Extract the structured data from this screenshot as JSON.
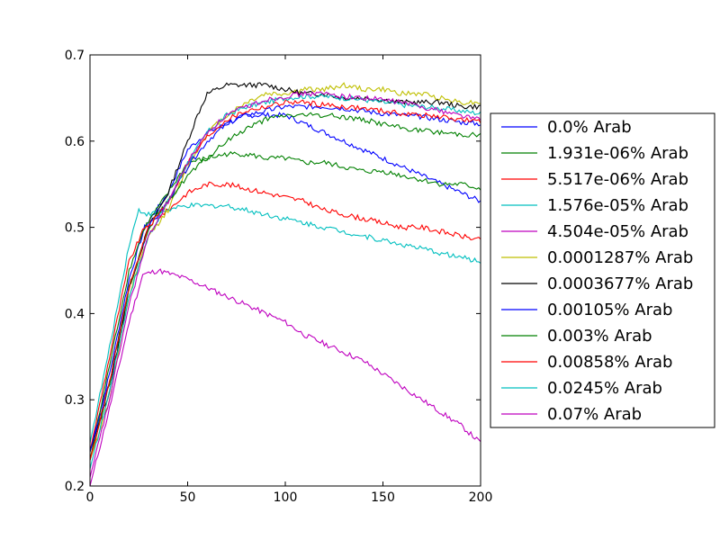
{
  "chart_data": {
    "type": "line",
    "title": "",
    "xlabel": "",
    "ylabel": "",
    "xlim": [
      0,
      200
    ],
    "ylim": [
      0.2,
      0.7
    ],
    "x_ticks": [
      0,
      50,
      100,
      150,
      200
    ],
    "x_tick_labels": [
      "0",
      "50",
      "100",
      "150",
      "200"
    ],
    "y_ticks": [
      0.2,
      0.3,
      0.4,
      0.5,
      0.6,
      0.7
    ],
    "y_tick_labels": [
      "0.2",
      "0.3",
      "0.4",
      "0.5",
      "0.6",
      "0.7"
    ],
    "grid": false,
    "legend_position": "right, outside plot area",
    "series": [
      {
        "name": "0.0% Arab",
        "color": "#0000ff",
        "points": [
          [
            0,
            0.24
          ],
          [
            10,
            0.33
          ],
          [
            20,
            0.44
          ],
          [
            28,
            0.5
          ],
          [
            40,
            0.54
          ],
          [
            50,
            0.59
          ],
          [
            60,
            0.61
          ],
          [
            70,
            0.62
          ],
          [
            80,
            0.63
          ],
          [
            90,
            0.63
          ],
          [
            100,
            0.63
          ],
          [
            110,
            0.62
          ],
          [
            120,
            0.61
          ],
          [
            130,
            0.6
          ],
          [
            140,
            0.59
          ],
          [
            150,
            0.58
          ],
          [
            160,
            0.57
          ],
          [
            170,
            0.56
          ],
          [
            180,
            0.55
          ],
          [
            190,
            0.54
          ],
          [
            200,
            0.53
          ]
        ]
      },
      {
        "name": "1.931e-06% Arab",
        "color": "#008000",
        "points": [
          [
            0,
            0.23
          ],
          [
            10,
            0.34
          ],
          [
            20,
            0.45
          ],
          [
            28,
            0.5
          ],
          [
            40,
            0.54
          ],
          [
            50,
            0.575
          ],
          [
            60,
            0.58
          ],
          [
            70,
            0.585
          ],
          [
            80,
            0.585
          ],
          [
            90,
            0.58
          ],
          [
            100,
            0.58
          ],
          [
            110,
            0.575
          ],
          [
            120,
            0.575
          ],
          [
            130,
            0.57
          ],
          [
            140,
            0.565
          ],
          [
            150,
            0.565
          ],
          [
            160,
            0.56
          ],
          [
            170,
            0.555
          ],
          [
            180,
            0.55
          ],
          [
            190,
            0.55
          ],
          [
            200,
            0.545
          ]
        ]
      },
      {
        "name": "5.517e-06% Arab",
        "color": "#ff0000",
        "points": [
          [
            0,
            0.24
          ],
          [
            10,
            0.35
          ],
          [
            20,
            0.46
          ],
          [
            28,
            0.5
          ],
          [
            40,
            0.52
          ],
          [
            50,
            0.54
          ],
          [
            60,
            0.55
          ],
          [
            70,
            0.55
          ],
          [
            80,
            0.545
          ],
          [
            90,
            0.54
          ],
          [
            100,
            0.535
          ],
          [
            110,
            0.53
          ],
          [
            120,
            0.52
          ],
          [
            130,
            0.515
          ],
          [
            140,
            0.51
          ],
          [
            150,
            0.505
          ],
          [
            160,
            0.5
          ],
          [
            170,
            0.5
          ],
          [
            180,
            0.495
          ],
          [
            190,
            0.49
          ],
          [
            200,
            0.485
          ]
        ]
      },
      {
        "name": "1.576e-05% Arab",
        "color": "#00bfbf",
        "points": [
          [
            0,
            0.25
          ],
          [
            10,
            0.36
          ],
          [
            20,
            0.48
          ],
          [
            25,
            0.52
          ],
          [
            30,
            0.515
          ],
          [
            40,
            0.52
          ],
          [
            50,
            0.525
          ],
          [
            60,
            0.525
          ],
          [
            70,
            0.525
          ],
          [
            80,
            0.52
          ],
          [
            90,
            0.515
          ],
          [
            100,
            0.51
          ],
          [
            110,
            0.505
          ],
          [
            120,
            0.5
          ],
          [
            130,
            0.495
          ],
          [
            140,
            0.49
          ],
          [
            150,
            0.485
          ],
          [
            160,
            0.48
          ],
          [
            170,
            0.475
          ],
          [
            180,
            0.47
          ],
          [
            190,
            0.465
          ],
          [
            200,
            0.46
          ]
        ]
      },
      {
        "name": "4.504e-05% Arab",
        "color": "#bf00bf",
        "points": [
          [
            0,
            0.2
          ],
          [
            10,
            0.29
          ],
          [
            20,
            0.39
          ],
          [
            27,
            0.445
          ],
          [
            35,
            0.45
          ],
          [
            50,
            0.44
          ],
          [
            60,
            0.43
          ],
          [
            70,
            0.42
          ],
          [
            80,
            0.41
          ],
          [
            90,
            0.4
          ],
          [
            100,
            0.39
          ],
          [
            110,
            0.375
          ],
          [
            120,
            0.365
          ],
          [
            130,
            0.355
          ],
          [
            140,
            0.345
          ],
          [
            150,
            0.33
          ],
          [
            160,
            0.315
          ],
          [
            170,
            0.3
          ],
          [
            180,
            0.285
          ],
          [
            190,
            0.27
          ],
          [
            200,
            0.25
          ]
        ]
      },
      {
        "name": "0.0001287% Arab",
        "color": "#bfbf00",
        "points": [
          [
            0,
            0.23
          ],
          [
            10,
            0.3
          ],
          [
            20,
            0.42
          ],
          [
            30,
            0.49
          ],
          [
            40,
            0.52
          ],
          [
            50,
            0.57
          ],
          [
            60,
            0.61
          ],
          [
            70,
            0.63
          ],
          [
            80,
            0.645
          ],
          [
            90,
            0.655
          ],
          [
            100,
            0.655
          ],
          [
            110,
            0.66
          ],
          [
            120,
            0.66
          ],
          [
            130,
            0.665
          ],
          [
            140,
            0.66
          ],
          [
            150,
            0.66
          ],
          [
            160,
            0.655
          ],
          [
            170,
            0.655
          ],
          [
            180,
            0.65
          ],
          [
            190,
            0.645
          ],
          [
            200,
            0.645
          ]
        ]
      },
      {
        "name": "0.0003677% Arab",
        "color": "#000000",
        "points": [
          [
            0,
            0.24
          ],
          [
            10,
            0.31
          ],
          [
            20,
            0.43
          ],
          [
            30,
            0.5
          ],
          [
            40,
            0.54
          ],
          [
            50,
            0.6
          ],
          [
            55,
            0.63
          ],
          [
            60,
            0.655
          ],
          [
            70,
            0.665
          ],
          [
            80,
            0.665
          ],
          [
            90,
            0.665
          ],
          [
            100,
            0.66
          ],
          [
            110,
            0.655
          ],
          [
            120,
            0.655
          ],
          [
            130,
            0.65
          ],
          [
            140,
            0.65
          ],
          [
            150,
            0.648
          ],
          [
            160,
            0.645
          ],
          [
            170,
            0.645
          ],
          [
            180,
            0.645
          ],
          [
            190,
            0.64
          ],
          [
            200,
            0.64
          ]
        ]
      },
      {
        "name": "0.00105% Arab",
        "color": "#0000ff",
        "points": [
          [
            0,
            0.24
          ],
          [
            10,
            0.32
          ],
          [
            20,
            0.43
          ],
          [
            30,
            0.5
          ],
          [
            40,
            0.53
          ],
          [
            50,
            0.57
          ],
          [
            60,
            0.6
          ],
          [
            70,
            0.62
          ],
          [
            80,
            0.63
          ],
          [
            90,
            0.635
          ],
          [
            100,
            0.64
          ],
          [
            110,
            0.64
          ],
          [
            120,
            0.64
          ],
          [
            130,
            0.638
          ],
          [
            140,
            0.635
          ],
          [
            150,
            0.632
          ],
          [
            160,
            0.63
          ],
          [
            170,
            0.628
          ],
          [
            180,
            0.625
          ],
          [
            190,
            0.622
          ],
          [
            200,
            0.62
          ]
        ]
      },
      {
        "name": "0.003% Arab",
        "color": "#008000",
        "points": [
          [
            0,
            0.23
          ],
          [
            10,
            0.32
          ],
          [
            20,
            0.43
          ],
          [
            30,
            0.5
          ],
          [
            40,
            0.53
          ],
          [
            50,
            0.56
          ],
          [
            60,
            0.58
          ],
          [
            70,
            0.6
          ],
          [
            80,
            0.615
          ],
          [
            90,
            0.625
          ],
          [
            100,
            0.63
          ],
          [
            110,
            0.63
          ],
          [
            120,
            0.63
          ],
          [
            130,
            0.628
          ],
          [
            140,
            0.625
          ],
          [
            150,
            0.62
          ],
          [
            160,
            0.615
          ],
          [
            170,
            0.612
          ],
          [
            180,
            0.61
          ],
          [
            190,
            0.608
          ],
          [
            200,
            0.607
          ]
        ]
      },
      {
        "name": "0.00858% Arab",
        "color": "#ff0000",
        "points": [
          [
            0,
            0.23
          ],
          [
            10,
            0.32
          ],
          [
            20,
            0.43
          ],
          [
            30,
            0.5
          ],
          [
            40,
            0.53
          ],
          [
            50,
            0.575
          ],
          [
            60,
            0.605
          ],
          [
            70,
            0.625
          ],
          [
            80,
            0.635
          ],
          [
            90,
            0.64
          ],
          [
            100,
            0.645
          ],
          [
            110,
            0.645
          ],
          [
            120,
            0.642
          ],
          [
            130,
            0.64
          ],
          [
            140,
            0.638
          ],
          [
            150,
            0.635
          ],
          [
            160,
            0.632
          ],
          [
            170,
            0.63
          ],
          [
            180,
            0.628
          ],
          [
            190,
            0.625
          ],
          [
            200,
            0.622
          ]
        ]
      },
      {
        "name": "0.0245% Arab",
        "color": "#00bfbf",
        "points": [
          [
            0,
            0.22
          ],
          [
            10,
            0.31
          ],
          [
            20,
            0.42
          ],
          [
            30,
            0.49
          ],
          [
            40,
            0.53
          ],
          [
            50,
            0.575
          ],
          [
            60,
            0.61
          ],
          [
            70,
            0.63
          ],
          [
            80,
            0.64
          ],
          [
            90,
            0.645
          ],
          [
            100,
            0.65
          ],
          [
            110,
            0.652
          ],
          [
            120,
            0.652
          ],
          [
            130,
            0.65
          ],
          [
            140,
            0.648
          ],
          [
            150,
            0.645
          ],
          [
            160,
            0.642
          ],
          [
            170,
            0.64
          ],
          [
            180,
            0.638
          ],
          [
            190,
            0.635
          ],
          [
            200,
            0.632
          ]
        ]
      },
      {
        "name": "0.07% Arab",
        "color": "#bf00bf",
        "points": [
          [
            0,
            0.21
          ],
          [
            10,
            0.3
          ],
          [
            20,
            0.41
          ],
          [
            30,
            0.49
          ],
          [
            40,
            0.53
          ],
          [
            50,
            0.575
          ],
          [
            60,
            0.61
          ],
          [
            70,
            0.63
          ],
          [
            80,
            0.64
          ],
          [
            90,
            0.648
          ],
          [
            100,
            0.652
          ],
          [
            110,
            0.655
          ],
          [
            120,
            0.655
          ],
          [
            130,
            0.652
          ],
          [
            140,
            0.65
          ],
          [
            150,
            0.648
          ],
          [
            160,
            0.645
          ],
          [
            170,
            0.64
          ],
          [
            180,
            0.635
          ],
          [
            190,
            0.63
          ],
          [
            200,
            0.625
          ]
        ]
      }
    ]
  }
}
